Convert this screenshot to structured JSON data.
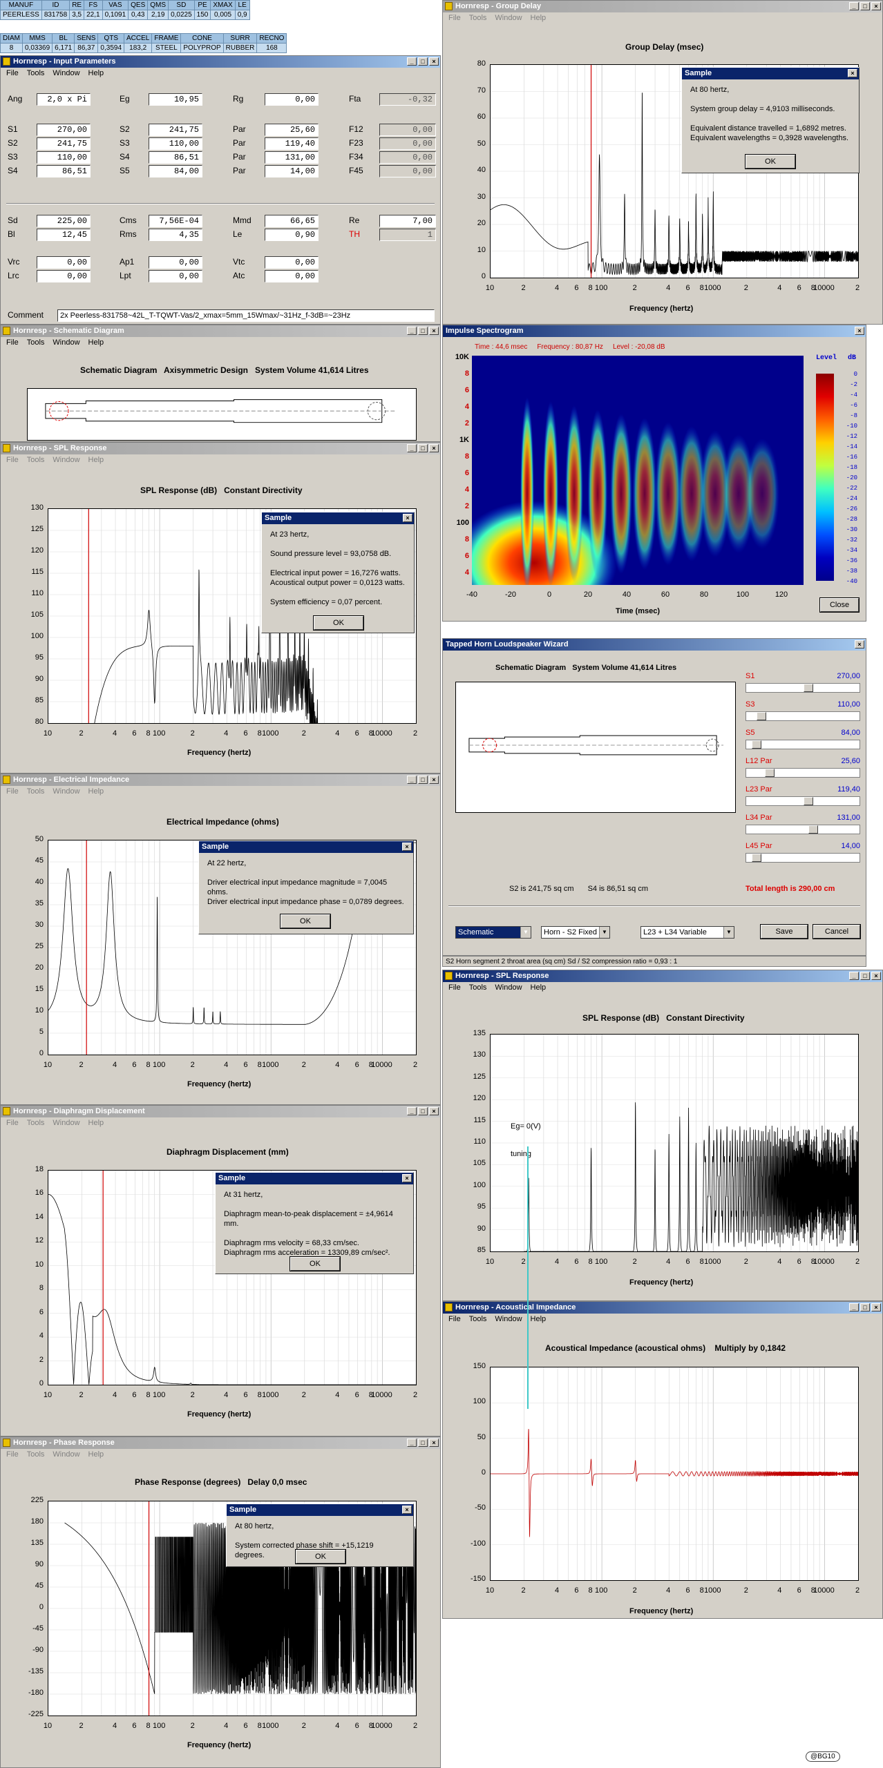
{
  "table1": {
    "headers": [
      "MANUF",
      "ID",
      "RE",
      "FS",
      "VAS",
      "QES",
      "QMS",
      "SD",
      "PE",
      "XMAX",
      "LE"
    ],
    "values": [
      "PEERLESS",
      "831758",
      "3,5",
      "22,1",
      "0,1091",
      "0,43",
      "2,19",
      "0,0225",
      "150",
      "0,005",
      "0,9"
    ]
  },
  "table2": {
    "headers": [
      "DIAM",
      "MMS",
      "BL",
      "SENS",
      "QTS",
      "ACCEL",
      "FRAME",
      "CONE",
      "SURR",
      "RECNO"
    ],
    "values": [
      "8",
      "0,03369",
      "6,171",
      "86,37",
      "0,3594",
      "183,2",
      "STEEL",
      "POLYPROP",
      "RUBBER",
      "168"
    ]
  },
  "menus": {
    "full": [
      "File",
      "Tools",
      "Window",
      "Help"
    ]
  },
  "input_params": {
    "title": "Hornresp - Input Parameters",
    "rows": [
      [
        [
          "Ang",
          "2,0 x Pi"
        ],
        [
          "Eg",
          "10,95"
        ],
        [
          "Rg",
          "0,00"
        ],
        [
          "Fta",
          "-0,32"
        ]
      ],
      [
        [
          "S1",
          "270,00"
        ],
        [
          "S2",
          "241,75"
        ],
        [
          "Par",
          "25,60"
        ],
        [
          "F12",
          "0,00"
        ]
      ],
      [
        [
          "S2",
          "241,75"
        ],
        [
          "S3",
          "110,00"
        ],
        [
          "Par",
          "119,40"
        ],
        [
          "F23",
          "0,00"
        ]
      ],
      [
        [
          "S3",
          "110,00"
        ],
        [
          "S4",
          "86,51"
        ],
        [
          "Par",
          "131,00"
        ],
        [
          "F34",
          "0,00"
        ]
      ],
      [
        [
          "S4",
          "86,51"
        ],
        [
          "S5",
          "84,00"
        ],
        [
          "Par",
          "14,00"
        ],
        [
          "F45",
          "0,00"
        ]
      ],
      [
        [
          "Sd",
          "225,00"
        ],
        [
          "Cms",
          "7,56E-04"
        ],
        [
          "Mmd",
          "66,65"
        ],
        [
          "Re",
          "7,00"
        ]
      ],
      [
        [
          "Bl",
          "12,45"
        ],
        [
          "Rms",
          "4,35"
        ],
        [
          "Le",
          "0,90"
        ],
        [
          "TH",
          "1"
        ]
      ],
      [
        [
          "Vrc",
          "0,00"
        ],
        [
          "Ap1",
          "0,00"
        ],
        [
          "Vtc",
          "0,00"
        ]
      ],
      [
        [
          "Lrc",
          "0,00"
        ],
        [
          "Lpt",
          "0,00"
        ],
        [
          "Atc",
          "0,00"
        ]
      ]
    ],
    "comment_label": "Comment",
    "comment": "2x Peerless-831758~42L_T-TQWT-Vas/2_xmax=5mm_15Wmax/~31Hz_f-3dB=~23Hz"
  },
  "schematic": {
    "title": "Hornresp - Schematic Diagram",
    "heading": "Schematic Diagram   Axisymmetric Design   System Volume 41,614 Litres"
  },
  "spl1": {
    "title": "Hornresp - SPL Response",
    "heading": "SPL Response (dB)   Constant Directivity",
    "xlabel": "Frequency (hertz)",
    "yticks": [
      "130",
      "125",
      "120",
      "115",
      "110",
      "105",
      "100",
      "95",
      "90",
      "85",
      "80"
    ],
    "dialog": {
      "title": "Sample",
      "text": "At 23 hertz,\n\nSound pressure level = 93,0758 dB.\n\nElectrical input power = 16,7276 watts.\nAcoustical output power = 0,0123 watts.\n\nSystem efficiency = 0,07 percent.",
      "ok": "OK"
    }
  },
  "xticks": [
    "10",
    "2",
    "4",
    "6",
    "8",
    "100",
    "2",
    "4",
    "6",
    "8",
    "1000",
    "2",
    "4",
    "6",
    "8",
    "10000",
    "2"
  ],
  "imp": {
    "title": "Hornresp - Electrical Impedance",
    "heading": "Electrical Impedance (ohms)",
    "xlabel": "Frequency (hertz)",
    "yticks": [
      "50",
      "45",
      "40",
      "35",
      "30",
      "25",
      "20",
      "15",
      "10",
      "5",
      "0"
    ],
    "dialog": {
      "title": "Sample",
      "text": "At 22 hertz,\n\nDriver electrical input impedance magnitude = 7,0045 ohms.\nDriver electrical input impedance phase = 0,0789 degrees.",
      "ok": "OK"
    }
  },
  "disp": {
    "title": "Hornresp - Diaphragm Displacement",
    "heading": "Diaphragm Displacement (mm)",
    "xlabel": "Frequency (hertz)",
    "yticks": [
      "18",
      "16",
      "14",
      "12",
      "10",
      "8",
      "6",
      "4",
      "2",
      "0"
    ],
    "dialog": {
      "title": "Sample",
      "text": "At 31 hertz,\n\nDiaphragm mean-to-peak displacement = ±4,9614 mm.\n\nDiaphragm rms velocity = 68,33 cm/sec.\nDiaphragm rms acceleration = 13309,89 cm/sec².",
      "ok": "OK"
    }
  },
  "phase": {
    "title": "Hornresp - Phase Response",
    "heading": "Phase Response (degrees)   Delay 0,0 msec",
    "xlabel": "Frequency (hertz)",
    "yticks": [
      "225",
      "180",
      "135",
      "90",
      "45",
      "0",
      "-45",
      "-90",
      "-135",
      "-180",
      "-225"
    ],
    "dialog": {
      "title": "Sample",
      "text": "At 80 hertz,\n\nSystem corrected phase shift = +15,1219 degrees.",
      "ok": "OK"
    }
  },
  "gd": {
    "title": "Hornresp - Group Delay",
    "heading": "Group Delay (msec)",
    "xlabel": "Frequency (hertz)",
    "yticks": [
      "80",
      "70",
      "60",
      "50",
      "40",
      "30",
      "20",
      "10",
      "0"
    ],
    "dialog": {
      "title": "Sample",
      "text": "At 80 hertz,\n\nSystem group delay = 4,9103 milliseconds.\n\nEquivalent distance travelled = 1,6892 metres.\nEquivalent wavelengths = 0,3928 wavelengths.",
      "ok": "OK"
    }
  },
  "spec": {
    "title": "Impulse Spectrogram",
    "info": [
      "Time : 44,6 msec",
      "Frequency : 80,87 Hz",
      "Level : -20,08 dB"
    ],
    "yticks": [
      "10K",
      "8",
      "6",
      "4",
      "2",
      "1K",
      "8",
      "6",
      "4",
      "2",
      "100",
      "8",
      "6",
      "4"
    ],
    "xticks": [
      "-40",
      "-20",
      "0",
      "20",
      "40",
      "60",
      "80",
      "100",
      "120"
    ],
    "xlabel": "Time (msec)",
    "level_label": "Level",
    "db_label": "dB",
    "scale": [
      "0",
      "-2",
      "-4",
      "-6",
      "-8",
      "-10",
      "-12",
      "-14",
      "-16",
      "-18",
      "-20",
      "-22",
      "-24",
      "-26",
      "-28",
      "-30",
      "-32",
      "-34",
      "-36",
      "-38",
      "-40"
    ],
    "close": "Close"
  },
  "wizard": {
    "title": "Tapped Horn Loudspeaker Wizard",
    "heading": "Schematic Diagram   System Volume 41,614 Litres",
    "sliders": [
      {
        "name": "S1",
        "value": "270,00",
        "pos": 0.55
      },
      {
        "name": "S3",
        "value": "110,00",
        "pos": 0.1
      },
      {
        "name": "S5",
        "value": "84,00",
        "pos": 0.05
      },
      {
        "name": "L12  Par",
        "value": "25,60",
        "pos": 0.18
      },
      {
        "name": "L23  Par",
        "value": "119,40",
        "pos": 0.55
      },
      {
        "name": "L34  Par",
        "value": "131,00",
        "pos": 0.6
      },
      {
        "name": "L45  Par",
        "value": "14,00",
        "pos": 0.05
      }
    ],
    "s2text": "S2 is 241,75 sq cm",
    "s4text": "S4 is 86,51 sq cm",
    "total": "Total length is 290,00 cm",
    "select1": "Schematic",
    "select2": "Horn - S2 Fixed",
    "select3": "L23 + L34 Variable",
    "save": "Save",
    "cancel": "Cancel",
    "status": "S2   Horn segment 2 throat area  (sq cm)   Sd / S2 compression ratio = 0,93 : 1"
  },
  "spl2": {
    "title": "Hornresp - SPL Response",
    "heading": "SPL Response (dB)   Constant Directivity",
    "xlabel": "Frequency (hertz)",
    "yticks": [
      "135",
      "130",
      "125",
      "120",
      "115",
      "110",
      "105",
      "100",
      "95",
      "90",
      "85"
    ],
    "eg": "Eg= 0(V)",
    "tuning": "tuning"
  },
  "ac": {
    "title": "Hornresp - Acoustical Impedance",
    "heading": "Acoustical Impedance (acoustical ohms)    Multiply by 0,1842",
    "xlabel": "Frequency (hertz)",
    "yticks": [
      "150",
      "100",
      "50",
      "0",
      "-50",
      "-100",
      "-150"
    ]
  },
  "signature": "@BG10",
  "colors": {
    "marker": "#d00000",
    "trace": "#000000",
    "grid": "#c8c8c8",
    "cyan": "#40c8c8"
  }
}
